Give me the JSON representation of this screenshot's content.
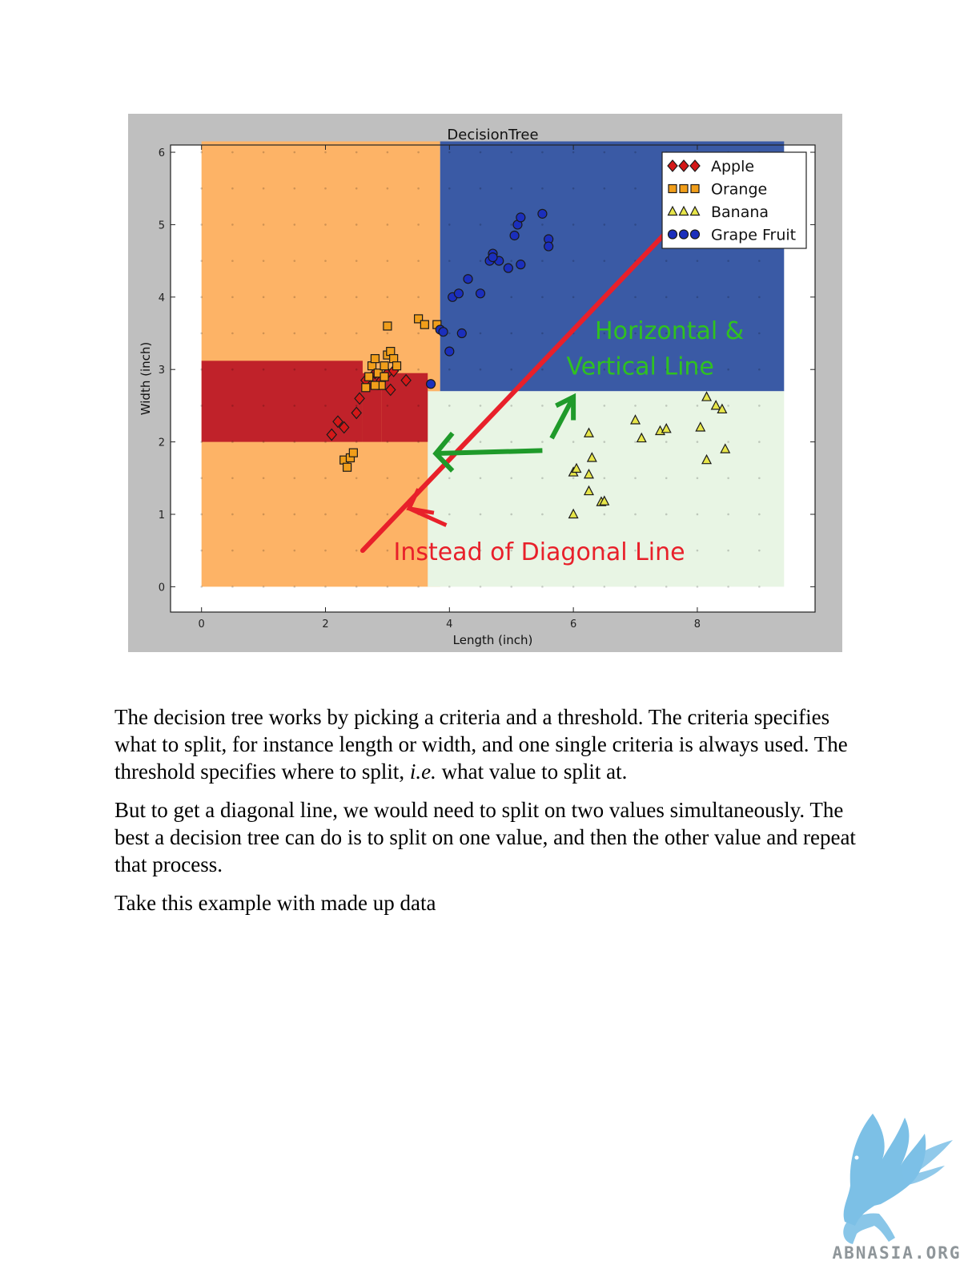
{
  "document": {
    "paragraphs": [
      {
        "id": "p1",
        "parts": [
          {
            "text": "The decision tree works by picking a criteria and a threshold.  The criteria specifies what to split, for instance length or width, and one single criteria is always used. The threshold specifies where to split, "
          },
          {
            "text": "i.e.",
            "italic": true
          },
          {
            "text": " what value to split at."
          }
        ]
      },
      {
        "id": "p2",
        "parts": [
          {
            "text": "But to get a diagonal line, we would need to split on two values simultaneously. The best a decision tree can do is to split on one value, and then the other value and repeat that process."
          }
        ]
      },
      {
        "id": "p3",
        "parts": [
          {
            "text": "Take this example with made up data"
          }
        ]
      }
    ]
  },
  "logo": {
    "text": "ABNASIA.ORG"
  },
  "chart_data": {
    "type": "scatter",
    "title": "DecisionTree",
    "xlabel": "Length (inch)",
    "ylabel": "Width (inch)",
    "xlim": [
      -0.5,
      9.9
    ],
    "ylim": [
      -0.35,
      6.1
    ],
    "xticks": [
      0,
      2,
      4,
      6,
      8
    ],
    "yticks": [
      0,
      1,
      2,
      3,
      4,
      5,
      6
    ],
    "legend_position": "top-right",
    "regions": [
      {
        "class": "Orange",
        "x": [
          0,
          3.85
        ],
        "y": [
          0,
          6.15
        ],
        "color": "#fdb366"
      },
      {
        "class": "Grape Fruit",
        "x": [
          3.85,
          9.4
        ],
        "y": [
          2.7,
          6.15
        ],
        "color": "#3a5aa5"
      },
      {
        "class": "Banana",
        "x": [
          3.65,
          9.4
        ],
        "y": [
          0,
          2.7
        ],
        "color": "#e8f5e4"
      },
      {
        "class": "Apple",
        "x": [
          0,
          2.6
        ],
        "y": [
          2.0,
          3.12
        ],
        "color": "#c0222a"
      },
      {
        "class": "Apple",
        "x": [
          2.6,
          2.9
        ],
        "y": [
          2.0,
          2.95
        ],
        "color": "#c0222a"
      },
      {
        "class": "Apple",
        "x": [
          2.9,
          3.65
        ],
        "y": [
          2.0,
          2.95
        ],
        "color": "#c0222a"
      }
    ],
    "series": [
      {
        "name": "Apple",
        "marker": "diamond",
        "color": "#d41818",
        "points": [
          [
            2.1,
            2.1
          ],
          [
            2.2,
            2.28
          ],
          [
            2.3,
            2.2
          ],
          [
            2.5,
            2.4
          ],
          [
            2.55,
            2.6
          ],
          [
            2.65,
            2.85
          ],
          [
            2.8,
            2.95
          ],
          [
            2.9,
            2.85
          ],
          [
            3.0,
            2.95
          ],
          [
            3.05,
            2.72
          ],
          [
            3.3,
            2.85
          ],
          [
            3.1,
            2.98
          ]
        ]
      },
      {
        "name": "Orange",
        "marker": "square",
        "color": "#f19e1a",
        "points": [
          [
            2.3,
            1.75
          ],
          [
            2.35,
            1.65
          ],
          [
            2.4,
            1.78
          ],
          [
            2.45,
            1.85
          ],
          [
            2.65,
            2.75
          ],
          [
            2.7,
            2.9
          ],
          [
            2.75,
            3.05
          ],
          [
            2.8,
            3.15
          ],
          [
            2.85,
            2.95
          ],
          [
            2.9,
            2.78
          ],
          [
            2.95,
            3.05
          ],
          [
            3.0,
            3.2
          ],
          [
            3.05,
            3.25
          ],
          [
            3.1,
            3.15
          ],
          [
            3.15,
            3.05
          ],
          [
            3.0,
            3.6
          ],
          [
            3.5,
            3.7
          ],
          [
            3.6,
            3.62
          ],
          [
            3.8,
            3.62
          ],
          [
            2.8,
            2.78
          ],
          [
            2.95,
            2.9
          ]
        ]
      },
      {
        "name": "Banana",
        "marker": "triangle",
        "color": "#e7e64a",
        "points": [
          [
            6.0,
            1.0
          ],
          [
            6.0,
            1.58
          ],
          [
            6.05,
            1.63
          ],
          [
            6.25,
            2.12
          ],
          [
            6.3,
            1.78
          ],
          [
            6.25,
            1.55
          ],
          [
            6.25,
            1.32
          ],
          [
            6.45,
            1.17
          ],
          [
            6.5,
            1.18
          ],
          [
            7.0,
            2.3
          ],
          [
            7.1,
            2.05
          ],
          [
            7.4,
            2.15
          ],
          [
            7.5,
            2.18
          ],
          [
            8.05,
            2.2
          ],
          [
            8.15,
            2.62
          ],
          [
            8.3,
            2.5
          ],
          [
            8.4,
            2.45
          ],
          [
            8.45,
            1.9
          ],
          [
            8.15,
            1.75
          ]
        ]
      },
      {
        "name": "Grape Fruit",
        "marker": "circle",
        "color": "#1b2fbc",
        "points": [
          [
            3.7,
            2.8
          ],
          [
            3.85,
            3.55
          ],
          [
            3.9,
            3.52
          ],
          [
            4.0,
            3.25
          ],
          [
            4.05,
            4.0
          ],
          [
            4.15,
            4.05
          ],
          [
            4.2,
            3.5
          ],
          [
            4.3,
            4.25
          ],
          [
            4.5,
            4.05
          ],
          [
            4.65,
            4.5
          ],
          [
            4.7,
            4.6
          ],
          [
            4.8,
            4.5
          ],
          [
            4.95,
            4.4
          ],
          [
            5.05,
            4.85
          ],
          [
            5.1,
            5.0
          ],
          [
            5.15,
            5.1
          ],
          [
            5.15,
            4.45
          ],
          [
            5.5,
            5.15
          ],
          [
            5.6,
            4.8
          ],
          [
            5.6,
            4.7
          ],
          [
            4.7,
            4.55
          ]
        ]
      }
    ],
    "annotations": [
      {
        "text": "Horizontal &",
        "color": "#2fc21f"
      },
      {
        "text": "Vertical Line",
        "color": "#2fc21f"
      },
      {
        "text": "Instead of Diagonal Line",
        "color": "#e8202a"
      }
    ]
  }
}
